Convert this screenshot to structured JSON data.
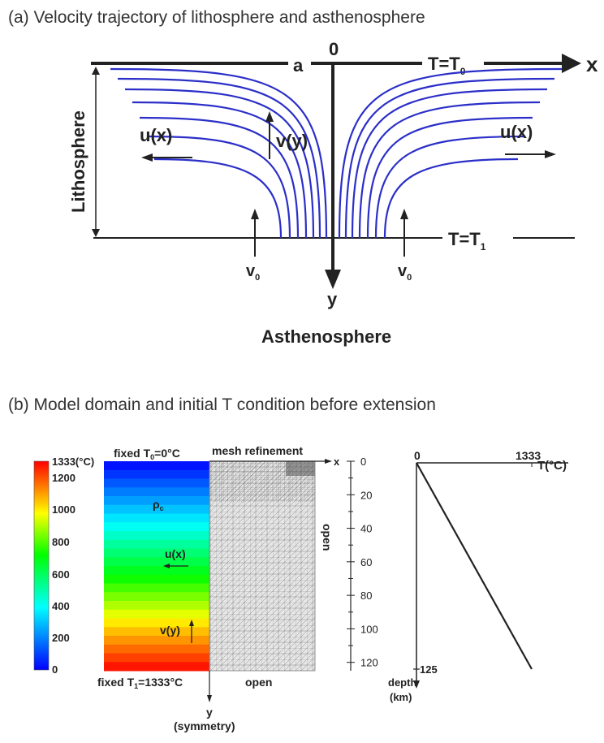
{
  "panel_a": {
    "caption": "(a) Velocity trajectory of lithosphere and asthenosphere",
    "x_axis": "x",
    "y_axis": "y",
    "origin": "0",
    "label_a": "a",
    "top_temp": "T=T",
    "top_temp_sub": "0",
    "bottom_temp": "T=T",
    "bottom_temp_sub": "1",
    "lithosphere": "Lithosphere",
    "asthenosphere": "Asthenosphere",
    "u_left": "u(x)",
    "u_right": "u(x)",
    "v_label": "v(y)",
    "v0": "v",
    "v0_sub": "0",
    "stream_color": "#2b2fc8"
  },
  "panel_b": {
    "caption": "(b) Model domain and initial T condition before extension",
    "colorbar": {
      "labels": [
        "1333(°C)",
        "1200",
        "1000",
        "800",
        "600",
        "400",
        "200",
        "0"
      ],
      "colors": [
        "#0000ff",
        "#00ffff",
        "#00ff00",
        "#ffff00",
        "#ff0000"
      ]
    },
    "top_bc": "fixed T",
    "top_bc_sub": "0",
    "top_bc_value": "=0°C",
    "mesh_label": "mesh refinement",
    "rho_label": "ρ",
    "rho_sub": "c",
    "u_label": "u(x)",
    "v_label": "v(y)",
    "bottom_bc": "fixed T",
    "bottom_bc_sub": "1",
    "bottom_bc_value": "=1333°C",
    "open_bottom": "open",
    "open_side": "open",
    "x_axis": "x",
    "y_axis": "y",
    "symmetry": "(symmetry)",
    "depth_ticks": [
      "0",
      "20",
      "40",
      "60",
      "80",
      "100",
      "120"
    ]
  },
  "chart_data": {
    "type": "line",
    "series": [
      {
        "x": [
          0,
          1333
        ],
        "y": [
          0,
          125
        ]
      }
    ],
    "x_tick_labels": [
      "0",
      "1333"
    ],
    "xlabel": "T(°C)",
    "y_tick_labels": [
      "125"
    ],
    "ylabel_line1": "depth",
    "ylabel_line2": "(km)",
    "xlim": [
      0,
      1333
    ],
    "ylim": [
      0,
      125
    ],
    "y_inverted": true
  }
}
